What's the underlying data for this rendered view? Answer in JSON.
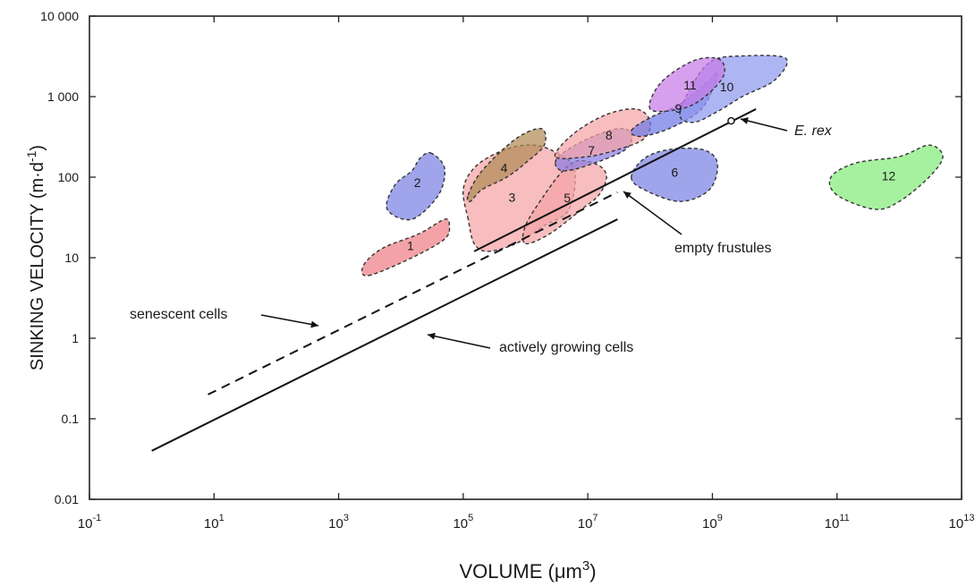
{
  "chart_data": {
    "type": "scatter",
    "x_scale": "log",
    "y_scale": "log",
    "xlim": [
      0.1,
      10000000000000
    ],
    "ylim": [
      0.01,
      10000
    ],
    "grid": false,
    "xlabel": {
      "text": "VOLUME (μm",
      "sup": "3",
      "close": ")"
    },
    "ylabel": {
      "text": "SINKING VELOCITY (m·d",
      "sup": "-1",
      "close": ")"
    },
    "x_ticks": [
      {
        "value": 0.1,
        "base": "10",
        "exp": "-1"
      },
      {
        "value": 10,
        "base": "10",
        "exp": "1"
      },
      {
        "value": 1000,
        "base": "10",
        "exp": "3"
      },
      {
        "value": 100000,
        "base": "10",
        "exp": "5"
      },
      {
        "value": 10000000,
        "base": "10",
        "exp": "7"
      },
      {
        "value": 1000000000,
        "base": "10",
        "exp": "9"
      },
      {
        "value": 100000000000,
        "base": "10",
        "exp": "11"
      },
      {
        "value": 10000000000000,
        "base": "10",
        "exp": "13"
      }
    ],
    "y_ticks": [
      {
        "value": 0.01,
        "label": "0.01"
      },
      {
        "value": 0.1,
        "label": "0.1"
      },
      {
        "value": 1,
        "label": "1"
      },
      {
        "value": 10,
        "label": "10"
      },
      {
        "value": 100,
        "label": "100"
      },
      {
        "value": 1000,
        "label": "1 000"
      },
      {
        "value": 10000,
        "label": "10 000"
      }
    ],
    "lines": [
      {
        "id": "actively-growing",
        "style": "solid",
        "x": [
          1,
          30000000
        ],
        "y": [
          0.04,
          30
        ]
      },
      {
        "id": "senescent",
        "style": "dashed",
        "x": [
          8,
          30000000
        ],
        "y": [
          0.2,
          65
        ]
      },
      {
        "id": "empty-frustules",
        "style": "solid",
        "x": [
          150000,
          5000000000
        ],
        "y": [
          12,
          700
        ]
      }
    ],
    "regions": [
      {
        "label": "1",
        "color": "#ee7f86",
        "points": [
          [
            3000,
            6
          ],
          [
            15000,
            10
          ],
          [
            50000,
            17
          ],
          [
            60000,
            25
          ],
          [
            50000,
            30
          ],
          [
            20000,
            20
          ],
          [
            5000,
            13
          ],
          [
            2500,
            8
          ]
        ]
      },
      {
        "label": "2",
        "color": "#7b82e3",
        "points": [
          [
            30000,
            200
          ],
          [
            50000,
            130
          ],
          [
            40000,
            60
          ],
          [
            15000,
            30
          ],
          [
            6000,
            40
          ],
          [
            8000,
            80
          ],
          [
            15000,
            120
          ],
          [
            20000,
            170
          ]
        ]
      },
      {
        "label": "3",
        "color": "#f4a4a6",
        "points": [
          [
            120000,
            30
          ],
          [
            100000,
            70
          ],
          [
            150000,
            130
          ],
          [
            350000,
            200
          ],
          [
            1000000,
            250
          ],
          [
            2500000,
            220
          ],
          [
            6000000,
            130
          ],
          [
            5000000,
            40
          ],
          [
            2000000,
            25
          ],
          [
            700000,
            15
          ],
          [
            250000,
            12
          ],
          [
            150000,
            15
          ]
        ]
      },
      {
        "label": "4",
        "color": "#b08a56",
        "points": [
          [
            120000,
            60
          ],
          [
            200000,
            120
          ],
          [
            700000,
            300
          ],
          [
            1800000,
            400
          ],
          [
            2000000,
            250
          ],
          [
            1000000,
            150
          ],
          [
            500000,
            100
          ],
          [
            200000,
            70
          ],
          [
            130000,
            50
          ]
        ]
      },
      {
        "label": "5",
        "color": "#f4a4a6",
        "points": [
          [
            1000000,
            15
          ],
          [
            2500000,
            20
          ],
          [
            8000000,
            40
          ],
          [
            15000000,
            60
          ],
          [
            20000000,
            100
          ],
          [
            15000000,
            140
          ],
          [
            7000000,
            160
          ],
          [
            4000000,
            120
          ],
          [
            2000000,
            60
          ],
          [
            1000000,
            25
          ]
        ]
      },
      {
        "label": "6",
        "color": "#7b82e3",
        "points": [
          [
            50000000,
            100
          ],
          [
            80000000,
            70
          ],
          [
            300000000,
            50
          ],
          [
            900000000,
            70
          ],
          [
            1200000000,
            150
          ],
          [
            700000000,
            220
          ],
          [
            200000000,
            220
          ],
          [
            80000000,
            170
          ]
        ]
      },
      {
        "label": "7",
        "color": "#8a7ce0",
        "points": [
          [
            3000000,
            150
          ],
          [
            4000000,
            120
          ],
          [
            10000000,
            140
          ],
          [
            40000000,
            220
          ],
          [
            50000000,
            350
          ],
          [
            30000000,
            400
          ],
          [
            10000000,
            300
          ],
          [
            4000000,
            200
          ]
        ]
      },
      {
        "label": "8",
        "color": "#f4a4a6",
        "points": [
          [
            3000000,
            180
          ],
          [
            6000000,
            350
          ],
          [
            20000000,
            600
          ],
          [
            60000000,
            700
          ],
          [
            100000000,
            500
          ],
          [
            80000000,
            300
          ],
          [
            30000000,
            220
          ],
          [
            10000000,
            180
          ]
        ]
      },
      {
        "label": "9",
        "color": "#6f78e6",
        "points": [
          [
            50000000,
            380
          ],
          [
            100000000,
            550
          ],
          [
            300000000,
            800
          ],
          [
            800000000,
            1500
          ],
          [
            1200000000,
            2000
          ],
          [
            1000000000,
            1200
          ],
          [
            600000000,
            650
          ],
          [
            200000000,
            400
          ],
          [
            70000000,
            320
          ]
        ]
      },
      {
        "label": "10",
        "color": "#8f98ef",
        "points": [
          [
            300000000,
            600
          ],
          [
            500000000,
            1500
          ],
          [
            1000000000,
            2800
          ],
          [
            3000000000,
            3200
          ],
          [
            15000000000,
            3000
          ],
          [
            10000000000,
            1600
          ],
          [
            3000000000,
            1000
          ],
          [
            1200000000,
            650
          ],
          [
            500000000,
            480
          ]
        ]
      },
      {
        "label": "11",
        "color": "#c77ce8",
        "points": [
          [
            100000000,
            700
          ],
          [
            150000000,
            1500
          ],
          [
            500000000,
            2800
          ],
          [
            1300000000,
            2900
          ],
          [
            1500000000,
            1800
          ],
          [
            700000000,
            950
          ],
          [
            300000000,
            700
          ]
        ]
      },
      {
        "label": "12",
        "color": "#84ec7a",
        "points": [
          [
            100000000000,
            60
          ],
          [
            80000000000,
            100
          ],
          [
            200000000000,
            150
          ],
          [
            1000000000000,
            180
          ],
          [
            3000000000000,
            250
          ],
          [
            5000000000000,
            180
          ],
          [
            3000000000000,
            100
          ],
          [
            1000000000000,
            50
          ],
          [
            400000000000,
            40
          ]
        ]
      }
    ],
    "point_markers": [
      {
        "label": "E. rex",
        "x": 2000000000,
        "y": 500
      }
    ],
    "annotations": [
      {
        "text": "senescent cells",
        "target": "senescent"
      },
      {
        "text": "actively growing cells",
        "target": "actively-growing"
      },
      {
        "text": "empty frustules",
        "target": "empty-frustules"
      },
      {
        "text": "E. rex",
        "italic": true,
        "target": "e-rex"
      }
    ]
  }
}
